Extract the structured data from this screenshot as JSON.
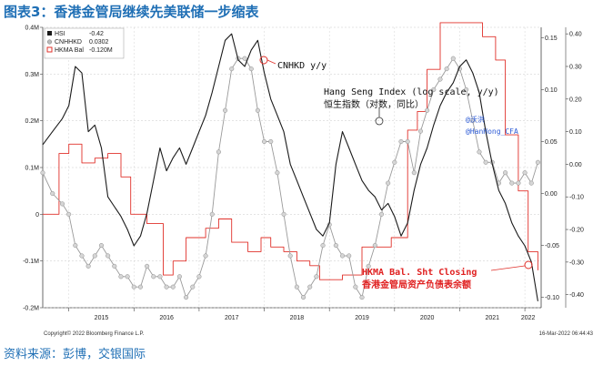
{
  "figure_title": "图表3：香港金管局继续先美联储一步缩表",
  "source_note": "资料来源：彭博，交银国际",
  "copyright": "Copyright© 2022 Bloomberg Finance L.P.",
  "timestamp": "16-Mar-2022 06:44:43",
  "colors": {
    "hsi": "#1a1a1a",
    "cnhhkd": "#9a9a9a",
    "hkma": "#e0302a"
  },
  "chart_data": {
    "type": "line",
    "x_ticks": [
      "2015",
      "2016",
      "2017",
      "2018",
      "2019",
      "2020",
      "2021",
      "2022"
    ],
    "left_axis": {
      "labels": [
        "0.4M",
        "0.3M",
        "0.2M",
        "0.1M",
        "0",
        "-0.1M",
        "-0.2M"
      ],
      "range": [
        -0.2,
        0.4
      ]
    },
    "right_axis_outer": {
      "labels": [
        "0.40",
        "0.30",
        "0.20",
        "0.10",
        "0.00",
        "-0.10",
        "-0.20",
        "-0.30",
        "-0.40"
      ],
      "range": [
        -0.44,
        0.42
      ]
    },
    "right_axis_inner": {
      "labels": [
        "0.15",
        "0.10",
        "0.05",
        "0.00",
        "-0.05",
        "-0.10"
      ],
      "range": [
        -0.11,
        0.16
      ]
    },
    "legend": [
      {
        "name": "HSI",
        "value": "-0.42",
        "color": "#1a1a1a"
      },
      {
        "name": "CNHHKD",
        "value": "0.0302",
        "color": "#9a9a9a"
      },
      {
        "name": "HKMA Bal",
        "value": "-0.120M",
        "color": "#e0302a"
      }
    ],
    "annotations": {
      "cnhhkd": "CNHKD y/y",
      "hsi_en": "Hang Seng Index (log scale, y/y)",
      "hsi_cn": "恒生指数（对数，同比）",
      "handle1": "@沃洪",
      "handle2": "@HanHong_CFA",
      "hkma_en": "HKMA Bal. Sht Closing",
      "hkma_cn": "香港金管局资产负债表余额"
    },
    "series": [
      {
        "name": "HSI",
        "axis": "right_outer",
        "x": [
          2014.6,
          2014.75,
          2014.9,
          2015.0,
          2015.1,
          2015.2,
          2015.3,
          2015.4,
          2015.5,
          2015.6,
          2015.7,
          2015.8,
          2015.9,
          2016.0,
          2016.1,
          2016.2,
          2016.3,
          2016.4,
          2016.5,
          2016.6,
          2016.7,
          2016.8,
          2016.9,
          2017.0,
          2017.1,
          2017.2,
          2017.3,
          2017.4,
          2017.5,
          2017.6,
          2017.7,
          2017.8,
          2017.9,
          2018.0,
          2018.1,
          2018.2,
          2018.3,
          2018.4,
          2018.5,
          2018.6,
          2018.7,
          2018.8,
          2018.9,
          2019.0,
          2019.1,
          2019.2,
          2019.3,
          2019.4,
          2019.5,
          2019.6,
          2019.7,
          2019.8,
          2019.9,
          2020.0,
          2020.1,
          2020.2,
          2020.3,
          2020.4,
          2020.5,
          2020.6,
          2020.7,
          2020.8,
          2020.9,
          2021.0,
          2021.1,
          2021.2,
          2021.3,
          2021.4,
          2021.5,
          2021.6,
          2021.7,
          2021.8,
          2021.9,
          2022.0,
          2022.1,
          2022.2
        ],
        "y": [
          0.06,
          0.1,
          0.14,
          0.18,
          0.3,
          0.28,
          0.1,
          0.12,
          0.05,
          -0.1,
          -0.13,
          -0.16,
          -0.2,
          -0.25,
          -0.22,
          -0.15,
          -0.05,
          0.05,
          -0.02,
          0.02,
          0.05,
          0.0,
          0.05,
          0.1,
          0.15,
          0.22,
          0.3,
          0.38,
          0.4,
          0.32,
          0.3,
          0.35,
          0.38,
          0.28,
          0.2,
          0.15,
          0.1,
          0.0,
          -0.05,
          -0.1,
          -0.15,
          -0.2,
          -0.22,
          -0.18,
          0.0,
          0.1,
          0.05,
          0.0,
          -0.05,
          -0.08,
          -0.1,
          -0.14,
          -0.12,
          -0.16,
          -0.22,
          -0.18,
          -0.08,
          0.0,
          0.05,
          0.12,
          0.18,
          0.22,
          0.25,
          0.3,
          0.32,
          0.28,
          0.22,
          0.1,
          0.0,
          -0.08,
          -0.12,
          -0.18,
          -0.22,
          -0.25,
          -0.3,
          -0.42
        ]
      },
      {
        "name": "CNHHKD",
        "axis": "right_inner",
        "x": [
          2014.6,
          2014.75,
          2014.9,
          2015.0,
          2015.1,
          2015.2,
          2015.3,
          2015.4,
          2015.5,
          2015.6,
          2015.7,
          2015.8,
          2015.9,
          2016.0,
          2016.1,
          2016.2,
          2016.3,
          2016.4,
          2016.5,
          2016.6,
          2016.7,
          2016.8,
          2016.9,
          2017.0,
          2017.1,
          2017.2,
          2017.3,
          2017.4,
          2017.5,
          2017.6,
          2017.7,
          2017.8,
          2017.9,
          2018.0,
          2018.1,
          2018.2,
          2018.3,
          2018.4,
          2018.5,
          2018.6,
          2018.7,
          2018.8,
          2018.9,
          2019.0,
          2019.1,
          2019.2,
          2019.3,
          2019.4,
          2019.5,
          2019.6,
          2019.7,
          2019.8,
          2019.9,
          2020.0,
          2020.1,
          2020.2,
          2020.3,
          2020.4,
          2020.5,
          2020.6,
          2020.7,
          2020.8,
          2020.9,
          2021.0,
          2021.1,
          2021.2,
          2021.3,
          2021.4,
          2021.5,
          2021.6,
          2021.7,
          2021.8,
          2021.9,
          2022.0,
          2022.1,
          2022.2
        ],
        "y": [
          0.02,
          0.0,
          -0.01,
          -0.02,
          -0.05,
          -0.06,
          -0.07,
          -0.06,
          -0.05,
          -0.06,
          -0.07,
          -0.08,
          -0.08,
          -0.09,
          -0.09,
          -0.07,
          -0.08,
          -0.08,
          -0.09,
          -0.09,
          -0.08,
          -0.1,
          -0.09,
          -0.08,
          -0.06,
          -0.02,
          0.04,
          0.08,
          0.12,
          0.13,
          0.13,
          0.12,
          0.08,
          0.05,
          0.05,
          0.02,
          -0.02,
          -0.06,
          -0.09,
          -0.1,
          -0.09,
          -0.08,
          -0.05,
          -0.03,
          -0.05,
          -0.06,
          -0.06,
          -0.09,
          -0.1,
          -0.07,
          -0.05,
          -0.02,
          0.01,
          0.03,
          0.05,
          0.05,
          0.02,
          0.06,
          0.08,
          0.1,
          0.11,
          0.12,
          0.13,
          0.12,
          0.1,
          0.07,
          0.04,
          0.03,
          0.03,
          0.01,
          0.02,
          0.01,
          0.01,
          0.02,
          0.01,
          0.03
        ]
      },
      {
        "name": "HKMA Bal",
        "axis": "left",
        "step": true,
        "x": [
          2014.6,
          2014.85,
          2015.0,
          2015.2,
          2015.4,
          2015.6,
          2015.8,
          2015.95,
          2016.2,
          2016.45,
          2016.6,
          2016.8,
          2016.95,
          2017.1,
          2017.3,
          2017.5,
          2017.75,
          2017.95,
          2018.1,
          2018.3,
          2018.5,
          2018.7,
          2018.85,
          2019.0,
          2019.2,
          2019.5,
          2019.75,
          2019.95,
          2020.2,
          2020.35,
          2020.5,
          2020.7,
          2020.9,
          2021.1,
          2021.35,
          2021.45,
          2021.55,
          2021.7,
          2021.9,
          2022.05,
          2022.2
        ],
        "y": [
          0.0,
          0.13,
          0.15,
          0.11,
          0.12,
          0.13,
          0.08,
          0.0,
          -0.02,
          -0.13,
          -0.1,
          -0.05,
          -0.05,
          -0.03,
          -0.01,
          -0.06,
          -0.08,
          -0.05,
          -0.07,
          -0.08,
          -0.1,
          -0.11,
          -0.14,
          -0.14,
          -0.13,
          -0.07,
          -0.07,
          -0.05,
          0.18,
          0.22,
          0.31,
          0.41,
          0.41,
          0.41,
          0.38,
          0.38,
          0.33,
          0.17,
          0.05,
          -0.08,
          -0.12
        ]
      }
    ]
  }
}
